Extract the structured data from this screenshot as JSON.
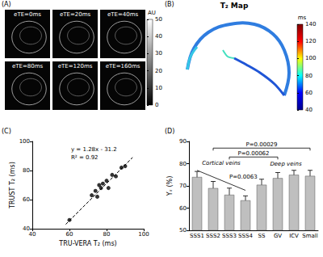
{
  "panels": {
    "A": {
      "label": "(A)",
      "images": [
        "eTE=0ms",
        "eTE=20ms",
        "eTE=40ms",
        "eTE=80ms",
        "eTE=120ms",
        "eTE=160ms"
      ],
      "colorbar": {
        "title": "AU",
        "range": [
          0,
          50
        ],
        "ticks": [
          0,
          10,
          20,
          30,
          40,
          50
        ],
        "colors": [
          "#000000",
          "#ffffff"
        ]
      }
    },
    "B": {
      "label": "(B)",
      "title": "T₂ Map",
      "colorbar": {
        "title": "ms",
        "range": [
          40,
          140
        ],
        "ticks": [
          40,
          60,
          80,
          100,
          120,
          140
        ],
        "colors": [
          "#00008f",
          "#0000ff",
          "#00ffff",
          "#ffff00",
          "#ff0000",
          "#800000"
        ]
      }
    }
  },
  "chart_data": [
    {
      "type": "scatter",
      "panel_label": "(C)",
      "x": [
        60,
        72,
        74,
        75,
        76,
        77,
        78,
        80,
        81,
        83,
        85,
        88,
        90
      ],
      "values": [
        46,
        63,
        66,
        62,
        70,
        68,
        71,
        73,
        68,
        77,
        76,
        82,
        83
      ],
      "xlabel": "TRU-VERA T₂ (ms)",
      "ylabel": "TRUST T₂ (ms)",
      "xlim": [
        40,
        100
      ],
      "ylim": [
        40,
        100
      ],
      "xticks": [
        40,
        60,
        80,
        100
      ],
      "yticks": [
        40,
        60,
        80,
        100
      ],
      "color": "#000000",
      "marker": "circle",
      "grid": false,
      "fit_line": {
        "x": [
          58,
          94
        ],
        "y": [
          43,
          89
        ],
        "line_style": "dashed"
      },
      "annotations": [
        "y = 1.28x - 31.2",
        "R² = 0.92"
      ]
    },
    {
      "type": "bar",
      "panel_label": "(D)",
      "categories": [
        "SSS1",
        "SSS2",
        "SSS3",
        "SSS4",
        "SS",
        "GV",
        "ICV",
        "Small"
      ],
      "values": [
        74,
        69,
        66,
        63.5,
        70.5,
        73.5,
        75,
        74.5
      ],
      "errors": [
        2.5,
        3,
        3,
        2,
        2.5,
        2.5,
        2,
        2.5
      ],
      "ylabel": "Yᵥ (%)",
      "ylim": [
        50,
        90
      ],
      "yticks": [
        50,
        60,
        70,
        80,
        90
      ],
      "color": "#bfbfbf",
      "grid": false,
      "brackets": [
        {
          "from": "SSS2",
          "to": "Small",
          "y": 87,
          "label": "P=0.00029"
        },
        {
          "from": "SSS3",
          "to": "GV",
          "y": 83,
          "label": "P=0.00062"
        }
      ],
      "trend": {
        "from": "SSS1",
        "to": "SSS4",
        "y": [
          77,
          68
        ],
        "label": "P=0.0063"
      },
      "groups": [
        {
          "label": "Cortical veins",
          "from": "SSS1",
          "to": "SSS4",
          "y": 79
        },
        {
          "label": "Deep veins",
          "from": "SS",
          "to": "Small",
          "y": 78.5
        }
      ]
    }
  ]
}
